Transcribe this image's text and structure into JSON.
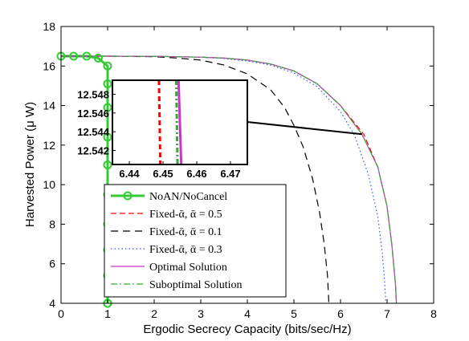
{
  "chart_data": {
    "type": "line",
    "xlabel": "Ergodic Secrecy Capacity (bits/sec/Hz)",
    "ylabel": "Harvested Power (μ W)",
    "xlim": [
      0,
      8
    ],
    "ylim": [
      4,
      18
    ],
    "x_ticks": [
      "0",
      "1",
      "2",
      "3",
      "4",
      "5",
      "6",
      "7",
      "8"
    ],
    "y_ticks": [
      "4",
      "6",
      "8",
      "10",
      "12",
      "14",
      "16",
      "18"
    ],
    "grid": false,
    "legend_position": "bottom-left",
    "series": [
      {
        "name": "NoAN/NoCancel",
        "color": "#33cc33",
        "dash": "solid",
        "marker": "circle",
        "x": [
          0,
          0.27,
          0.55,
          0.8,
          1.0,
          1.0,
          1.0,
          1.0,
          1.0,
          1.0,
          1.0,
          1.0,
          1.0,
          1.0,
          1.0
        ],
        "y": [
          16.5,
          16.5,
          16.5,
          16.4,
          16.0,
          15.1,
          13.9,
          12.4,
          11.0,
          9.5,
          8.0,
          6.7,
          5.4,
          4.0,
          4.0
        ]
      },
      {
        "name": "Fixed-ᾱ, ᾱ = 0.5",
        "color": "#ff0000",
        "dash": "dashed",
        "x": [
          0,
          1,
          2,
          3,
          3.5,
          4,
          4.5,
          5,
          5.5,
          6,
          6.5,
          6.8,
          7.0,
          7.1,
          7.18,
          7.2
        ],
        "y": [
          16.5,
          16.5,
          16.49,
          16.45,
          16.4,
          16.3,
          16.1,
          15.75,
          15.1,
          14.0,
          12.55,
          10.9,
          8.9,
          7.0,
          5.0,
          4.0
        ]
      },
      {
        "name": "Fixed-ᾱ, ᾱ = 0.1",
        "color": "#000000",
        "dash": "longdash",
        "x": [
          0,
          1,
          2,
          2.5,
          3,
          3.5,
          4,
          4.5,
          4.8,
          5.0,
          5.2,
          5.4,
          5.55,
          5.65,
          5.72,
          5.75
        ],
        "y": [
          16.5,
          16.5,
          16.47,
          16.4,
          16.3,
          16.05,
          15.6,
          14.8,
          13.9,
          13.0,
          11.9,
          10.3,
          8.6,
          7.0,
          5.4,
          4.0
        ]
      },
      {
        "name": "Fixed-ᾱ, ᾱ = 0.3",
        "color": "#3355ff",
        "dash": "dotted",
        "x": [
          0,
          1,
          2,
          3,
          3.5,
          4,
          4.5,
          5,
          5.5,
          6,
          6.3,
          6.6,
          6.8,
          6.9,
          6.95,
          6.97
        ],
        "y": [
          16.5,
          16.5,
          16.49,
          16.44,
          16.38,
          16.25,
          16.05,
          15.65,
          14.95,
          13.7,
          12.5,
          10.5,
          8.4,
          6.5,
          5.0,
          4.0
        ]
      },
      {
        "name": "Optimal Solution",
        "color": "#cc33cc",
        "dash": "solid",
        "x": [
          0,
          1,
          2,
          3,
          3.5,
          4,
          4.5,
          5,
          5.5,
          6,
          6.46,
          6.8,
          7.0,
          7.1,
          7.18,
          7.2
        ],
        "y": [
          16.5,
          16.5,
          16.49,
          16.45,
          16.4,
          16.3,
          16.1,
          15.75,
          15.1,
          14.0,
          12.55,
          10.9,
          8.9,
          7.0,
          5.0,
          4.0
        ]
      },
      {
        "name": "Suboptimal Solution",
        "color": "#33aa33",
        "dash": "dashdot",
        "x": [
          0,
          1,
          2,
          3,
          3.5,
          4,
          4.5,
          5,
          5.5,
          6,
          6.46,
          6.8,
          7.0,
          7.1,
          7.18,
          7.2
        ],
        "y": [
          16.5,
          16.5,
          16.49,
          16.45,
          16.4,
          16.3,
          16.1,
          15.75,
          15.1,
          14.0,
          12.55,
          10.9,
          8.9,
          7.0,
          5.0,
          4.0
        ]
      }
    ],
    "inset": {
      "xlim": [
        6.435,
        6.475
      ],
      "ylim": [
        12.5405,
        12.5495
      ],
      "x_ticks": [
        "6.44",
        "6.45",
        "6.46",
        "6.47"
      ],
      "y_ticks": [
        "12.548",
        "12.546",
        "12.544",
        "12.542"
      ],
      "zoom_point": [
        6.46,
        12.55
      ],
      "lines": [
        {
          "series": "Fixed-ᾱ, ᾱ = 0.5",
          "color": "#ff0000",
          "dash": "dashed",
          "x": [
            6.4488,
            6.4492
          ],
          "y": [
            12.5495,
            12.5405
          ]
        },
        {
          "series": "Suboptimal Solution",
          "color": "#33aa33",
          "dash": "dashdot",
          "x": [
            6.4539,
            6.4543
          ],
          "y": [
            12.5495,
            12.5405
          ]
        },
        {
          "series": "Optimal Solution",
          "color": "#cc33cc",
          "dash": "solid",
          "x": [
            6.4546,
            6.4554
          ],
          "y": [
            12.5495,
            12.5405
          ]
        }
      ]
    }
  }
}
